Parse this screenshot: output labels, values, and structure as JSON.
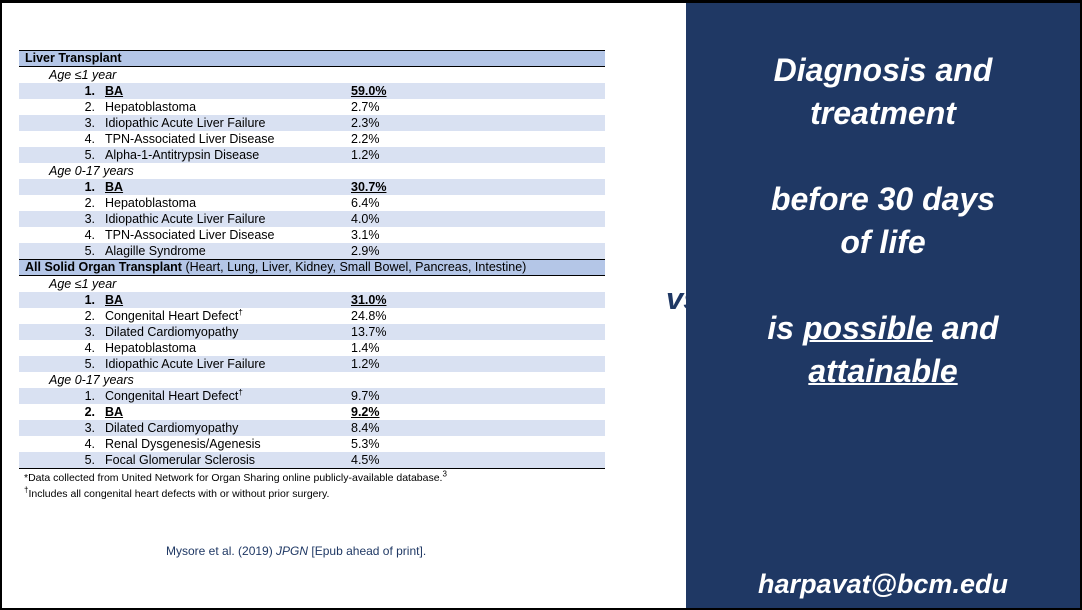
{
  "table": {
    "sections": [
      {
        "title": "Liver Transplant",
        "subtitle": "",
        "groups": [
          {
            "age": "Age ≤1 year",
            "rows": [
              {
                "n": "1.",
                "name": "BA",
                "pct": "59.0%",
                "bold": true
              },
              {
                "n": "2.",
                "name": "Hepatoblastoma",
                "pct": "2.7%"
              },
              {
                "n": "3.",
                "name": "Idiopathic Acute Liver Failure",
                "pct": "2.3%"
              },
              {
                "n": "4.",
                "name": "TPN-Associated Liver Disease",
                "pct": "2.2%"
              },
              {
                "n": "5.",
                "name": "Alpha-1-Antitrypsin Disease",
                "pct": "1.2%"
              }
            ]
          },
          {
            "age": "Age 0-17 years",
            "rows": [
              {
                "n": "1.",
                "name": "BA",
                "pct": "30.7%",
                "bold": true
              },
              {
                "n": "2.",
                "name": "Hepatoblastoma",
                "pct": "6.4%"
              },
              {
                "n": "3.",
                "name": "Idiopathic Acute Liver Failure",
                "pct": "4.0%"
              },
              {
                "n": "4.",
                "name": "TPN-Associated Liver Disease",
                "pct": "3.1%"
              },
              {
                "n": "5.",
                "name": "Alagille Syndrome",
                "pct": "2.9%"
              }
            ]
          }
        ]
      },
      {
        "title": "All Solid Organ Transplant",
        "subtitle": " (Heart, Lung, Liver, Kidney, Small Bowel, Pancreas, Intestine)",
        "groups": [
          {
            "age": "Age ≤1 year",
            "rows": [
              {
                "n": "1.",
                "name": "BA",
                "pct": "31.0%",
                "bold": true
              },
              {
                "n": "2.",
                "name": "Congenital Heart Defect",
                "sup": "†",
                "pct": "24.8%"
              },
              {
                "n": "3.",
                "name": "Dilated Cardiomyopathy",
                "pct": "13.7%"
              },
              {
                "n": "4.",
                "name": "Hepatoblastoma",
                "pct": "1.4%"
              },
              {
                "n": "5.",
                "name": "Idiopathic Acute Liver Failure",
                "pct": "1.2%"
              }
            ]
          },
          {
            "age": "Age 0-17 years",
            "rows": [
              {
                "n": "1.",
                "name": "Congenital Heart Defect",
                "sup": "†",
                "pct": "9.7%"
              },
              {
                "n": "2.",
                "name": "BA",
                "pct": "9.2%",
                "bold": true
              },
              {
                "n": "3.",
                "name": "Dilated Cardiomyopathy",
                "pct": "8.4%"
              },
              {
                "n": "4.",
                "name": "Renal Dysgenesis/Agenesis",
                "pct": "5.3%"
              },
              {
                "n": "5.",
                "name": "Focal Glomerular Sclerosis",
                "pct": "4.5%"
              }
            ]
          }
        ]
      }
    ]
  },
  "footnotes": {
    "note1": "*Data collected from United Network for Organ Sharing online publicly-available database.",
    "note1_sup": "3",
    "note2_sup": "†",
    "note2": "Includes all congenital heart defects with or without prior surgery."
  },
  "citation": {
    "authors": "Mysore et al. (2019) ",
    "journal": "JPGN",
    "rest": " [Epub ahead of print]."
  },
  "vs_label": "vs.",
  "headline": {
    "line1": "Diagnosis and",
    "line2": "treatment",
    "line3": "before 30 days",
    "line4": "of life",
    "line5_pre": "is ",
    "line5_underlined": "possible",
    "line5_post": " and",
    "line6_underlined": "attainable"
  },
  "email": "harpavat@bcm.edu",
  "colors": {
    "panel": "#1f3864",
    "header_row": "#b4c6e7",
    "shaded_row": "#d9e1f2"
  }
}
